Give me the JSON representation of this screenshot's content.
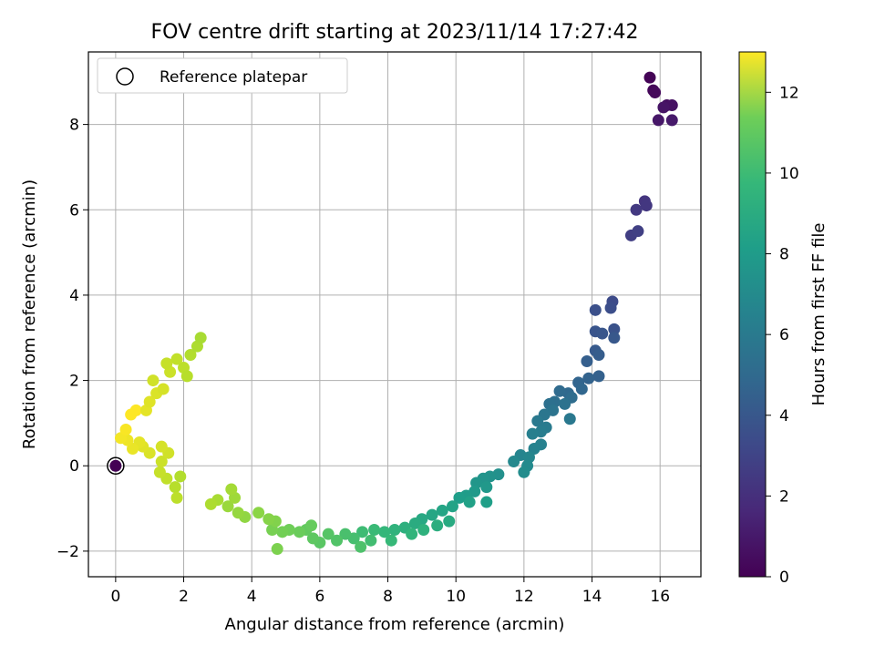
{
  "chart_data": {
    "type": "scatter",
    "title": "FOV centre drift starting at 2023/11/14 17:27:42",
    "xlabel": "Angular distance from reference (arcmin)",
    "ylabel": "Rotation from reference (arcmin)",
    "xlim": [
      -0.8,
      17.2
    ],
    "ylim": [
      -2.6,
      9.7
    ],
    "xticks": [
      0,
      2,
      4,
      6,
      8,
      10,
      12,
      14,
      16
    ],
    "yticks": [
      -2,
      0,
      2,
      4,
      6,
      8
    ],
    "grid": true,
    "legend": {
      "placement": "upper-left",
      "entries": [
        "Reference platepar"
      ]
    },
    "reference_point": {
      "x": 0,
      "y": 0
    },
    "colorbar": {
      "label": "Hours from first FF file",
      "range": [
        0,
        13
      ],
      "ticks": [
        0,
        2,
        4,
        6,
        8,
        10,
        12
      ],
      "colormap": "viridis"
    },
    "series": [
      {
        "points": [
          [
            15.7,
            9.1,
            0.1
          ],
          [
            15.8,
            8.8,
            0.2
          ],
          [
            15.85,
            8.75,
            0.3
          ],
          [
            16.2,
            8.45,
            0.5
          ],
          [
            16.35,
            8.45,
            0.6
          ],
          [
            16.1,
            8.4,
            0.7
          ],
          [
            15.95,
            8.1,
            0.8
          ],
          [
            16.35,
            8.1,
            0.9
          ],
          [
            15.55,
            6.2,
            2.0
          ],
          [
            15.6,
            6.1,
            2.1
          ],
          [
            15.3,
            6.0,
            2.2
          ],
          [
            15.15,
            5.4,
            2.4
          ],
          [
            15.35,
            5.5,
            2.5
          ],
          [
            14.6,
            3.85,
            3.0
          ],
          [
            14.55,
            3.7,
            3.1
          ],
          [
            14.1,
            3.65,
            3.2
          ],
          [
            14.65,
            3.2,
            3.3
          ],
          [
            14.1,
            3.15,
            3.4
          ],
          [
            14.3,
            3.1,
            3.5
          ],
          [
            14.65,
            3.0,
            3.6
          ],
          [
            14.1,
            2.7,
            3.7
          ],
          [
            14.2,
            2.6,
            3.8
          ],
          [
            13.85,
            2.45,
            3.9
          ],
          [
            14.2,
            2.1,
            4.0
          ],
          [
            13.9,
            2.05,
            4.1
          ],
          [
            13.6,
            1.95,
            4.2
          ],
          [
            13.7,
            1.8,
            4.3
          ],
          [
            13.3,
            1.7,
            4.4
          ],
          [
            13.05,
            1.75,
            4.5
          ],
          [
            13.4,
            1.6,
            4.6
          ],
          [
            12.9,
            1.5,
            4.7
          ],
          [
            12.75,
            1.45,
            4.8
          ],
          [
            13.2,
            1.45,
            4.9
          ],
          [
            12.85,
            1.3,
            5.0
          ],
          [
            12.6,
            1.2,
            5.1
          ],
          [
            13.35,
            1.1,
            5.2
          ],
          [
            12.4,
            1.05,
            5.3
          ],
          [
            12.65,
            0.9,
            5.4
          ],
          [
            12.5,
            0.8,
            5.5
          ],
          [
            12.25,
            0.75,
            5.6
          ],
          [
            12.5,
            0.5,
            5.7
          ],
          [
            12.3,
            0.4,
            5.8
          ],
          [
            11.9,
            0.25,
            5.9
          ],
          [
            12.15,
            0.2,
            6.0
          ],
          [
            11.7,
            0.1,
            6.1
          ],
          [
            12.1,
            0.0,
            6.2
          ],
          [
            12.0,
            -0.15,
            6.3
          ],
          [
            11.25,
            -0.2,
            6.5
          ],
          [
            11.0,
            -0.25,
            6.6
          ],
          [
            10.8,
            -0.3,
            6.7
          ],
          [
            10.6,
            -0.4,
            6.8
          ],
          [
            10.9,
            -0.5,
            6.9
          ],
          [
            10.55,
            -0.6,
            7.0
          ],
          [
            10.3,
            -0.7,
            7.1
          ],
          [
            10.1,
            -0.75,
            7.2
          ],
          [
            10.9,
            -0.85,
            7.3
          ],
          [
            10.4,
            -0.85,
            7.4
          ],
          [
            9.9,
            -0.95,
            7.5
          ],
          [
            9.6,
            -1.05,
            7.6
          ],
          [
            9.3,
            -1.15,
            7.7
          ],
          [
            9.0,
            -1.25,
            7.8
          ],
          [
            9.8,
            -1.3,
            7.9
          ],
          [
            8.8,
            -1.35,
            8.0
          ],
          [
            9.45,
            -1.4,
            8.1
          ],
          [
            8.5,
            -1.45,
            8.2
          ],
          [
            9.05,
            -1.5,
            8.3
          ],
          [
            8.2,
            -1.5,
            8.4
          ],
          [
            8.7,
            -1.6,
            8.5
          ],
          [
            7.9,
            -1.55,
            8.6
          ],
          [
            8.1,
            -1.75,
            8.7
          ],
          [
            7.6,
            -1.5,
            8.8
          ],
          [
            7.25,
            -1.55,
            8.9
          ],
          [
            7.5,
            -1.75,
            9.0
          ],
          [
            7.0,
            -1.7,
            9.1
          ],
          [
            6.75,
            -1.6,
            9.2
          ],
          [
            7.2,
            -1.9,
            9.3
          ],
          [
            6.5,
            -1.75,
            9.4
          ],
          [
            6.25,
            -1.6,
            9.5
          ],
          [
            6.0,
            -1.8,
            9.6
          ],
          [
            5.8,
            -1.7,
            9.7
          ],
          [
            5.6,
            -1.5,
            9.8
          ],
          [
            5.75,
            -1.4,
            9.9
          ],
          [
            5.4,
            -1.55,
            10.0
          ],
          [
            5.1,
            -1.5,
            10.1
          ],
          [
            4.9,
            -1.55,
            10.2
          ],
          [
            4.6,
            -1.5,
            10.3
          ],
          [
            4.75,
            -1.95,
            10.4
          ],
          [
            4.7,
            -1.3,
            10.5
          ],
          [
            4.5,
            -1.25,
            10.6
          ],
          [
            4.2,
            -1.1,
            10.7
          ],
          [
            3.8,
            -1.2,
            10.8
          ],
          [
            3.6,
            -1.1,
            10.9
          ],
          [
            3.3,
            -0.95,
            11.0
          ],
          [
            3.5,
            -0.75,
            11.1
          ],
          [
            3.4,
            -0.55,
            11.2
          ],
          [
            3.0,
            -0.8,
            11.3
          ],
          [
            2.8,
            -0.9,
            11.4
          ],
          [
            1.9,
            -0.25,
            11.5
          ],
          [
            1.75,
            -0.5,
            11.6
          ],
          [
            1.8,
            -0.75,
            11.7
          ],
          [
            1.5,
            -0.3,
            11.8
          ],
          [
            1.3,
            -0.15,
            11.9
          ],
          [
            1.35,
            0.1,
            12.0
          ],
          [
            1.55,
            0.3,
            12.1
          ],
          [
            1.35,
            0.45,
            12.2
          ],
          [
            1.0,
            0.3,
            12.3
          ],
          [
            0.8,
            0.45,
            12.4
          ],
          [
            0.7,
            0.55,
            12.5
          ],
          [
            0.5,
            0.4,
            12.6
          ],
          [
            0.35,
            0.6,
            12.7
          ],
          [
            0.15,
            0.65,
            12.8
          ],
          [
            0.3,
            0.85,
            12.9
          ],
          [
            0.45,
            1.2,
            13.0
          ],
          [
            0.6,
            1.3,
            13.0
          ],
          [
            0.9,
            1.3,
            12.5
          ],
          [
            1.0,
            1.5,
            12.4
          ],
          [
            1.2,
            1.7,
            12.3
          ],
          [
            1.4,
            1.8,
            12.2
          ],
          [
            1.1,
            2.0,
            12.1
          ],
          [
            1.6,
            2.2,
            12.0
          ],
          [
            1.5,
            2.4,
            11.9
          ],
          [
            1.8,
            2.5,
            11.8
          ],
          [
            2.0,
            2.3,
            11.7
          ],
          [
            2.1,
            2.1,
            11.6
          ],
          [
            2.2,
            2.6,
            11.5
          ],
          [
            2.4,
            2.8,
            11.4
          ],
          [
            2.5,
            3.0,
            11.3
          ]
        ]
      }
    ]
  }
}
